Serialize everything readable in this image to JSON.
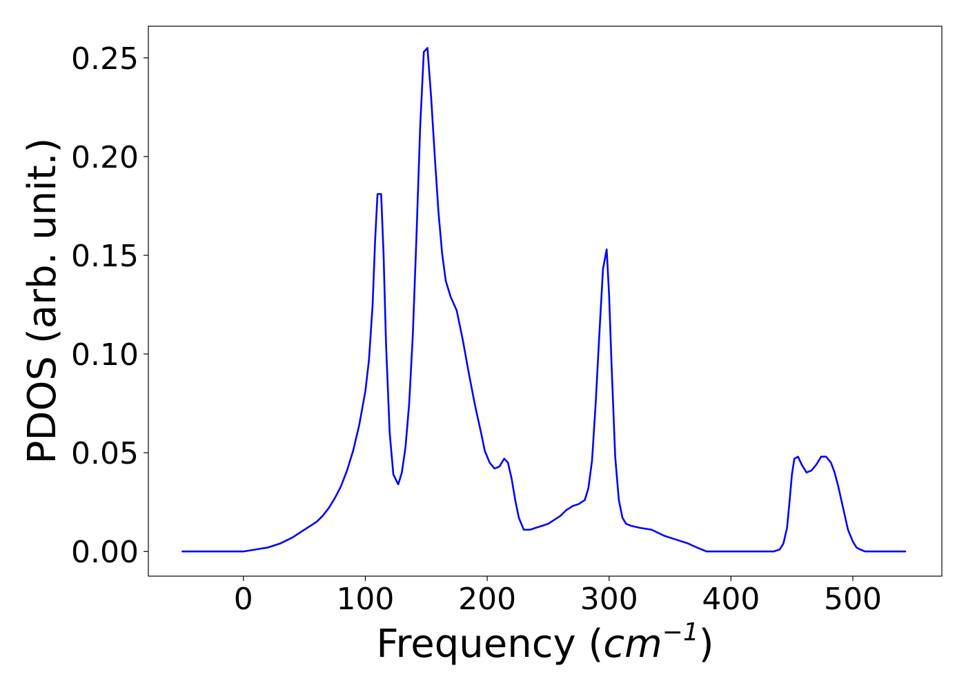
{
  "chart_data": {
    "type": "line",
    "title": "",
    "xlabel_prefix": "Frequency (",
    "xlabel_math": "cm",
    "xlabel_sup": "−1",
    "xlabel_suffix": ")",
    "ylabel": "PDOS (arb. unit.)",
    "xlim": [
      -78,
      573
    ],
    "ylim": [
      -0.0125,
      0.266
    ],
    "grid": false,
    "legend": "none",
    "x_ticks": [
      {
        "value": 0,
        "label": "0"
      },
      {
        "value": 100,
        "label": "100"
      },
      {
        "value": 200,
        "label": "200"
      },
      {
        "value": 300,
        "label": "300"
      },
      {
        "value": 400,
        "label": "400"
      },
      {
        "value": 500,
        "label": "500"
      }
    ],
    "y_ticks": [
      {
        "value": 0.0,
        "label": "0.00"
      },
      {
        "value": 0.05,
        "label": "0.05"
      },
      {
        "value": 0.1,
        "label": "0.10"
      },
      {
        "value": 0.15,
        "label": "0.15"
      },
      {
        "value": 0.2,
        "label": "0.20"
      },
      {
        "value": 0.25,
        "label": "0.25"
      }
    ],
    "series": [
      {
        "color": "#0000ff",
        "x": [
          -50,
          0,
          10,
          20,
          30,
          40,
          50,
          60,
          65,
          70,
          75,
          80,
          85,
          90,
          95,
          100,
          103,
          106,
          108,
          110,
          113,
          115,
          117,
          120,
          123,
          127,
          130,
          133,
          136,
          139,
          142,
          145,
          148,
          151,
          154,
          157,
          160,
          163,
          166,
          170,
          175,
          180,
          185,
          190,
          195,
          198,
          202,
          206,
          210,
          214,
          217,
          220,
          223,
          226,
          230,
          235,
          240,
          245,
          250,
          255,
          260,
          265,
          270,
          275,
          280,
          283,
          286,
          289,
          292,
          295,
          298,
          300,
          302,
          305,
          308,
          311,
          314,
          318,
          325,
          335,
          345,
          355,
          365,
          372,
          380,
          390,
          400,
          420,
          435,
          440,
          443,
          446,
          448,
          450,
          452,
          455,
          458,
          462,
          466,
          470,
          474,
          478,
          482,
          485,
          488,
          492,
          496,
          500,
          503,
          506,
          510,
          520,
          543
        ],
        "y": [
          0.0,
          0.0,
          0.001,
          0.002,
          0.004,
          0.007,
          0.011,
          0.015,
          0.018,
          0.022,
          0.027,
          0.033,
          0.041,
          0.051,
          0.064,
          0.081,
          0.097,
          0.125,
          0.157,
          0.181,
          0.181,
          0.15,
          0.105,
          0.06,
          0.039,
          0.034,
          0.04,
          0.053,
          0.075,
          0.11,
          0.16,
          0.215,
          0.253,
          0.255,
          0.23,
          0.2,
          0.172,
          0.151,
          0.137,
          0.129,
          0.122,
          0.107,
          0.09,
          0.074,
          0.06,
          0.051,
          0.045,
          0.042,
          0.043,
          0.047,
          0.045,
          0.037,
          0.026,
          0.017,
          0.011,
          0.011,
          0.012,
          0.013,
          0.014,
          0.016,
          0.018,
          0.021,
          0.023,
          0.024,
          0.026,
          0.032,
          0.046,
          0.075,
          0.11,
          0.143,
          0.153,
          0.13,
          0.095,
          0.048,
          0.026,
          0.017,
          0.014,
          0.013,
          0.012,
          0.011,
          0.008,
          0.006,
          0.004,
          0.002,
          0.0,
          0.0,
          0.0,
          0.0,
          0.0,
          0.001,
          0.004,
          0.012,
          0.025,
          0.039,
          0.047,
          0.048,
          0.044,
          0.04,
          0.041,
          0.044,
          0.048,
          0.048,
          0.045,
          0.04,
          0.033,
          0.022,
          0.011,
          0.005,
          0.002,
          0.001,
          0.0,
          0.0,
          0.0
        ]
      }
    ]
  }
}
